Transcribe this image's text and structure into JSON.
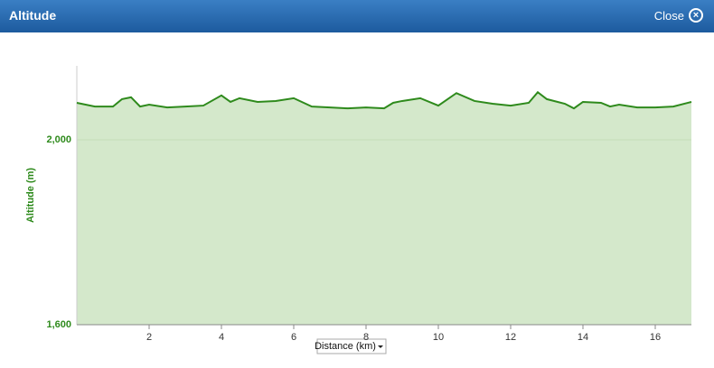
{
  "header": {
    "title": "Altitude",
    "close": "Close"
  },
  "chart_data": {
    "type": "area",
    "y_label": "Altitude (m)",
    "x_label": "Distance (km)",
    "x": [
      0,
      0.5,
      1,
      1.25,
      1.5,
      1.75,
      2,
      2.5,
      3,
      3.5,
      4,
      4.25,
      4.5,
      5,
      5.5,
      6,
      6.5,
      7,
      7.5,
      8,
      8.5,
      8.75,
      9,
      9.5,
      10,
      10.5,
      11,
      11.5,
      12,
      12.5,
      12.75,
      13,
      13.5,
      13.75,
      14,
      14.5,
      14.75,
      15,
      15.5,
      16,
      16.5,
      17
    ],
    "values": [
      2080,
      2072,
      2072,
      2088,
      2092,
      2072,
      2076,
      2070,
      2072,
      2074,
      2096,
      2082,
      2090,
      2082,
      2084,
      2090,
      2072,
      2070,
      2068,
      2070,
      2068,
      2080,
      2084,
      2090,
      2074,
      2101,
      2084,
      2078,
      2074,
      2080,
      2103,
      2088,
      2078,
      2068,
      2082,
      2080,
      2072,
      2076,
      2070,
      2070,
      2072,
      2082
    ],
    "color": "#2e8a1c",
    "fill": "#d4e8cb",
    "xlim": [
      0,
      17
    ],
    "xticks": [
      2,
      4,
      6,
      8,
      10,
      12,
      14,
      16
    ],
    "ylim": [
      1600,
      2160
    ],
    "yticks": [
      {
        "value": 1600,
        "label": "1,600"
      },
      {
        "value": 2000,
        "label": "2,000"
      }
    ],
    "grid": true
  }
}
